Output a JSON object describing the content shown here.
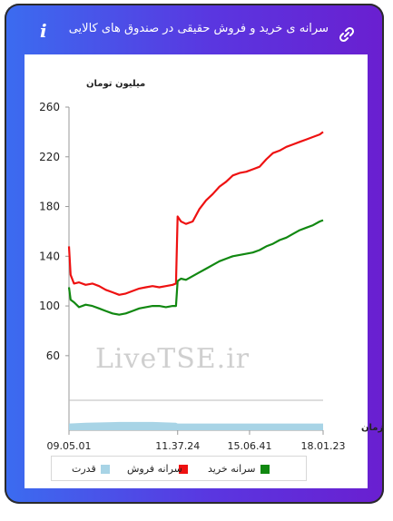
{
  "header": {
    "title": "سرانه ی خرید و فروش حقیقی در صندوق های کالایی",
    "info_icon": "i",
    "link_icon": "link-icon"
  },
  "watermark": "LiveTSE.ir",
  "colors": {
    "sell": "#ee1111",
    "buy": "#118811",
    "power": "#a8d4e6"
  },
  "chart_data": {
    "type": "line",
    "ylabel": "میلیون تومان",
    "xlabel": "زمان",
    "yticks": [
      60,
      100,
      140,
      180,
      220,
      260
    ],
    "ylim": [
      0,
      260
    ],
    "xticks": [
      "09.05.01",
      "11.37.24",
      "15.06.41",
      "18.01.23"
    ],
    "x_time": [
      "09:05",
      "11:37",
      "15:06",
      "18:01"
    ],
    "series": [
      {
        "name": "سرانه فروش",
        "key": "sell",
        "values": [
          [
            0,
            148
          ],
          [
            1,
            125
          ],
          [
            3,
            118
          ],
          [
            6,
            119
          ],
          [
            10,
            117
          ],
          [
            14,
            118
          ],
          [
            18,
            116
          ],
          [
            22,
            113
          ],
          [
            26,
            111
          ],
          [
            30,
            109
          ],
          [
            34,
            110
          ],
          [
            38,
            112
          ],
          [
            42,
            114
          ],
          [
            46,
            115
          ],
          [
            50,
            116
          ],
          [
            54,
            115
          ],
          [
            58,
            116
          ],
          [
            62,
            117
          ],
          [
            64,
            118
          ],
          [
            65,
            172
          ],
          [
            67,
            168
          ],
          [
            70,
            166
          ],
          [
            74,
            168
          ],
          [
            78,
            178
          ],
          [
            82,
            185
          ],
          [
            86,
            190
          ],
          [
            90,
            196
          ],
          [
            94,
            200
          ],
          [
            98,
            205
          ],
          [
            102,
            207
          ],
          [
            106,
            208
          ],
          [
            110,
            210
          ],
          [
            114,
            212
          ],
          [
            118,
            218
          ],
          [
            122,
            223
          ],
          [
            126,
            225
          ],
          [
            130,
            228
          ],
          [
            134,
            230
          ],
          [
            138,
            232
          ],
          [
            142,
            234
          ],
          [
            146,
            236
          ],
          [
            150,
            238
          ],
          [
            152,
            240
          ]
        ]
      },
      {
        "name": "سرانه خرید",
        "key": "buy",
        "values": [
          [
            0,
            115
          ],
          [
            1,
            105
          ],
          [
            3,
            103
          ],
          [
            6,
            99
          ],
          [
            10,
            101
          ],
          [
            14,
            100
          ],
          [
            18,
            98
          ],
          [
            22,
            96
          ],
          [
            26,
            94
          ],
          [
            30,
            93
          ],
          [
            34,
            94
          ],
          [
            38,
            96
          ],
          [
            42,
            98
          ],
          [
            46,
            99
          ],
          [
            50,
            100
          ],
          [
            54,
            100
          ],
          [
            58,
            99
          ],
          [
            62,
            100
          ],
          [
            64,
            100
          ],
          [
            65,
            120
          ],
          [
            67,
            122
          ],
          [
            70,
            121
          ],
          [
            74,
            124
          ],
          [
            78,
            127
          ],
          [
            82,
            130
          ],
          [
            86,
            133
          ],
          [
            90,
            136
          ],
          [
            94,
            138
          ],
          [
            98,
            140
          ],
          [
            102,
            141
          ],
          [
            106,
            142
          ],
          [
            110,
            143
          ],
          [
            114,
            145
          ],
          [
            118,
            148
          ],
          [
            122,
            150
          ],
          [
            126,
            153
          ],
          [
            130,
            155
          ],
          [
            134,
            158
          ],
          [
            138,
            161
          ],
          [
            142,
            163
          ],
          [
            146,
            165
          ],
          [
            150,
            168
          ],
          [
            152,
            169
          ]
        ]
      },
      {
        "name": "قدرت",
        "key": "power",
        "values": [
          [
            0,
            9
          ],
          [
            10,
            10
          ],
          [
            30,
            11
          ],
          [
            50,
            11
          ],
          [
            64,
            10
          ],
          [
            65,
            9
          ],
          [
            80,
            9
          ],
          [
            100,
            9
          ],
          [
            120,
            9
          ],
          [
            140,
            9
          ],
          [
            152,
            9
          ]
        ]
      }
    ],
    "legend_position": "bottom"
  }
}
